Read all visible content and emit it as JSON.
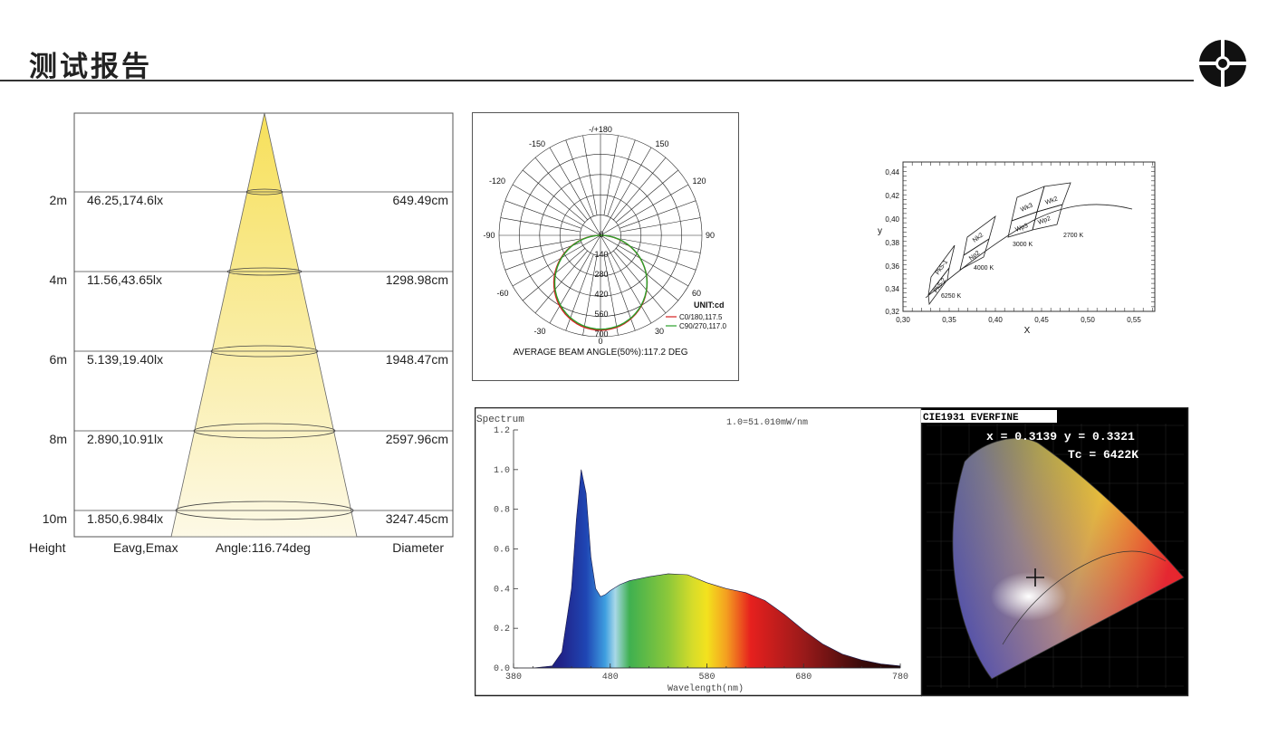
{
  "header": {
    "title": "测试报告"
  },
  "beam_diagram": {
    "rows": [
      {
        "height": "2m",
        "lux": "46.25,174.6lx",
        "diameter": "649.49cm"
      },
      {
        "height": "4m",
        "lux": "11.56,43.65lx",
        "diameter": "1298.98cm"
      },
      {
        "height": "6m",
        "lux": "5.139,19.40lx",
        "diameter": "1948.47cm"
      },
      {
        "height": "8m",
        "lux": "2.890,10.91lx",
        "diameter": "2597.96cm"
      },
      {
        "height": "10m",
        "lux": "1.850,6.984lx",
        "diameter": "3247.45cm"
      }
    ],
    "footer": {
      "height": "Height",
      "lux": "Eavg,Emax",
      "angle": "Angle:116.74deg",
      "diameter": "Diameter"
    }
  },
  "polar_chart": {
    "angle_labels": [
      "-/+180",
      "-150",
      "150",
      "-120",
      "120",
      "-90",
      "90",
      "-60",
      "60",
      "-30",
      "30",
      "0"
    ],
    "radial_labels": [
      "0",
      "140",
      "280",
      "420",
      "560",
      "700"
    ],
    "unit": "UNIT:cd",
    "legend": [
      {
        "name": "C0/180,117.5",
        "color": "#d42020"
      },
      {
        "name": "C90/270,117.0",
        "color": "#2aa02a"
      }
    ],
    "caption": "AVERAGE BEAM ANGLE(50%):117.2 DEG"
  },
  "cie_xy_chart": {
    "x_ticks": [
      "0,30",
      "0,35",
      "0,40",
      "0,45",
      "0,50",
      "0,55"
    ],
    "y_ticks": [
      "0,32",
      "0,34",
      "0,36",
      "0,38",
      "0,40",
      "0,42",
      "0,44"
    ],
    "xlabel": "X",
    "ylabel": "y",
    "bins": [
      "Pk5-1",
      "Pk5-2",
      "Nk2",
      "Np2",
      "Wk3",
      "Wk2",
      "Wp3",
      "Wp2"
    ],
    "cct_labels": [
      "6250 K",
      "4000 K",
      "3000 K",
      "2700 K"
    ]
  },
  "chart_data": {
    "type": "line",
    "title": "Spectrum",
    "note": "1.0=51.010mW/nm",
    "xlabel": "Wavelength(nm)",
    "xlim": [
      380,
      780
    ],
    "ylim": [
      0,
      1.2
    ],
    "x_ticks": [
      "380",
      "480",
      "580",
      "680",
      "780"
    ],
    "y_ticks": [
      "0.0",
      "0.2",
      "0.4",
      "0.6",
      "0.8",
      "1.0",
      "1.2"
    ],
    "x": [
      380,
      400,
      420,
      430,
      440,
      445,
      450,
      455,
      460,
      465,
      470,
      475,
      480,
      490,
      500,
      520,
      540,
      560,
      580,
      600,
      620,
      640,
      660,
      680,
      700,
      720,
      740,
      760,
      780
    ],
    "values": [
      0,
      0,
      0.01,
      0.08,
      0.4,
      0.75,
      1.0,
      0.88,
      0.56,
      0.4,
      0.36,
      0.37,
      0.39,
      0.42,
      0.44,
      0.46,
      0.475,
      0.47,
      0.43,
      0.4,
      0.38,
      0.34,
      0.27,
      0.19,
      0.12,
      0.07,
      0.04,
      0.02,
      0.01
    ]
  },
  "cie1931": {
    "title": "CIE1931 EVERFINE",
    "coords": "x = 0.3139 y = 0.3321",
    "tc": "Tc = 6422K"
  }
}
